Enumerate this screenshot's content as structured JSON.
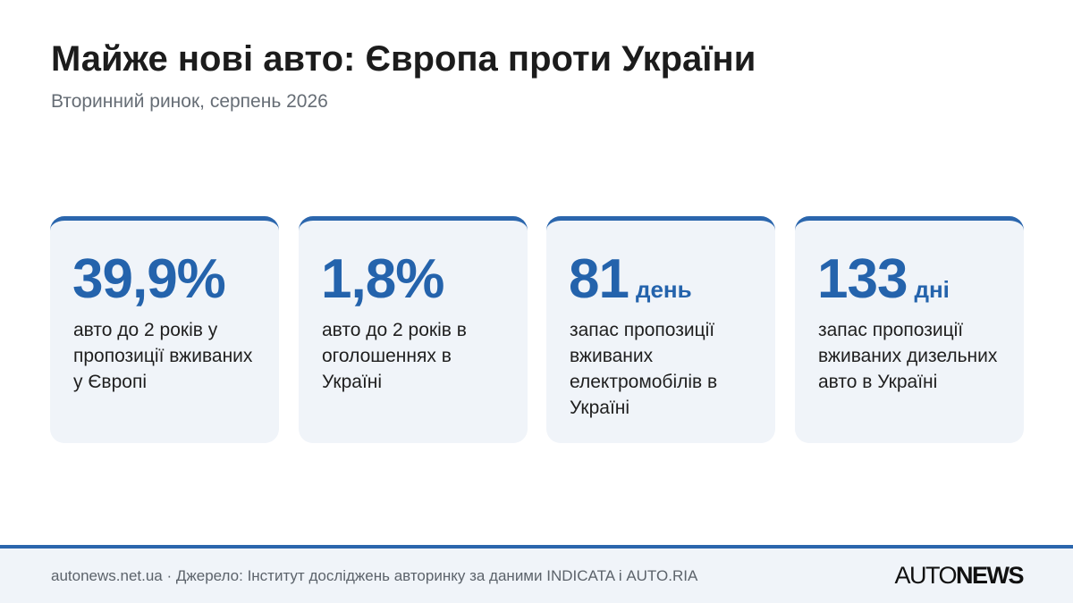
{
  "header": {
    "title": "Майже нові авто: Європа проти України",
    "subtitle": "Вторинний ринок, серпень 2026"
  },
  "cards": [
    {
      "value": "39,9%",
      "unit": "",
      "description": "авто до 2 років у пропозиції вживаних у Європі"
    },
    {
      "value": "1,8%",
      "unit": "",
      "description": "авто до 2 років в оголошеннях в Україні"
    },
    {
      "value": "81",
      "unit": "день",
      "description": "запас пропозиції вживаних електромобілів в Україні"
    },
    {
      "value": "133",
      "unit": "дні",
      "description": "запас пропозиції вживаних дизельних авто в Україні"
    }
  ],
  "footer": {
    "source_text": "autonews.net.ua · Джерело: Інститут досліджень авторинку за даними INDICATA і AUTO.RIA",
    "logo_light": "AUTO",
    "logo_bold": "NEWS"
  },
  "colors": {
    "accent": "#2463ac",
    "card_background": "#f0f4f9",
    "accent_border": "#2b66ad"
  }
}
